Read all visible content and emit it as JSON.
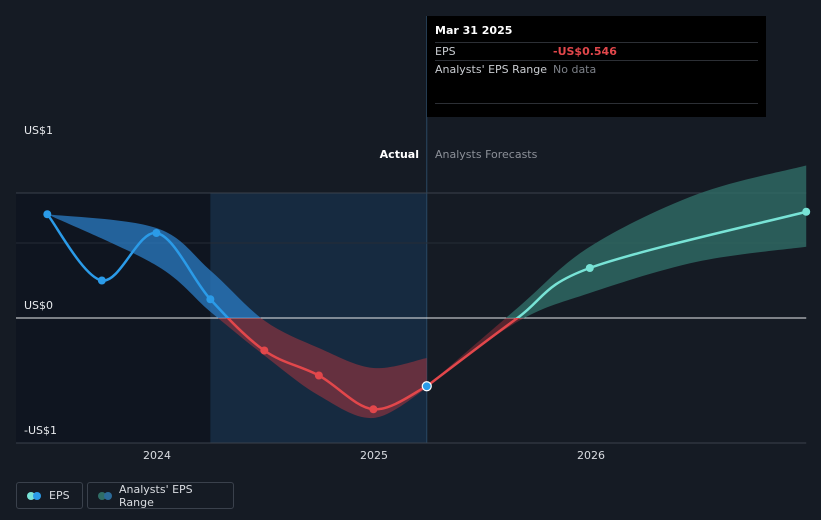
{
  "chart_data": {
    "type": "line",
    "y_axis": {
      "labels": [
        "US$1",
        "US$0",
        "-US$1"
      ],
      "ylim": [
        -1,
        1
      ]
    },
    "x_axis": {
      "tick_labels": [
        "2024",
        "2025",
        "2026"
      ],
      "range": [
        "2023-06-30",
        "2026-12-31"
      ]
    },
    "zones": {
      "actual_label": "Actual",
      "forecast_label": "Analysts Forecasts"
    },
    "series": [
      {
        "name": "EPS",
        "kind": "actual",
        "points": [
          {
            "x": "2023-06-30",
            "y": 0.83
          },
          {
            "x": "2023-09-30",
            "y": 0.3
          },
          {
            "x": "2023-12-31",
            "y": 0.68
          },
          {
            "x": "2024-03-31",
            "y": 0.15
          },
          {
            "x": "2024-06-30",
            "y": -0.26
          },
          {
            "x": "2024-09-30",
            "y": -0.46
          },
          {
            "x": "2024-12-31",
            "y": -0.73
          },
          {
            "x": "2025-03-31",
            "y": -0.546
          }
        ]
      },
      {
        "name": "EPS",
        "kind": "forecast",
        "points": [
          {
            "x": "2025-03-31",
            "y": -0.546
          },
          {
            "x": "2025-08-31",
            "y": 0.0
          },
          {
            "x": "2025-12-31",
            "y": 0.4
          },
          {
            "x": "2026-12-31",
            "y": 0.85
          }
        ]
      },
      {
        "name": "Analysts' EPS Range",
        "kind": "band",
        "upper": [
          {
            "x": "2023-06-30",
            "y": 0.83
          },
          {
            "x": "2023-12-31",
            "y": 0.72
          },
          {
            "x": "2024-03-31",
            "y": 0.38
          },
          {
            "x": "2024-06-30",
            "y": -0.02
          },
          {
            "x": "2024-09-30",
            "y": -0.24
          },
          {
            "x": "2024-12-31",
            "y": -0.4
          },
          {
            "x": "2025-03-31",
            "y": -0.32
          }
        ],
        "lower": [
          {
            "x": "2025-03-31",
            "y": -0.56
          },
          {
            "x": "2024-12-31",
            "y": -0.8
          },
          {
            "x": "2024-09-30",
            "y": -0.62
          },
          {
            "x": "2024-06-30",
            "y": -0.3
          },
          {
            "x": "2024-03-31",
            "y": 0.05
          },
          {
            "x": "2023-12-31",
            "y": 0.42
          },
          {
            "x": "2023-06-30",
            "y": 0.83
          }
        ]
      },
      {
        "name": "Analysts' EPS Range",
        "kind": "forecast-band",
        "upper": [
          {
            "x": "2025-03-31",
            "y": -0.546
          },
          {
            "x": "2025-08-31",
            "y": 0.08
          },
          {
            "x": "2025-12-31",
            "y": 0.57
          },
          {
            "x": "2026-06-30",
            "y": 0.99
          },
          {
            "x": "2026-12-31",
            "y": 1.22
          }
        ],
        "lower": [
          {
            "x": "2026-12-31",
            "y": 0.57
          },
          {
            "x": "2026-06-30",
            "y": 0.45
          },
          {
            "x": "2025-12-31",
            "y": 0.2
          },
          {
            "x": "2025-08-31",
            "y": -0.03
          },
          {
            "x": "2025-03-31",
            "y": -0.546
          }
        ]
      }
    ],
    "colors": {
      "eps_positive": "#2b9be8",
      "eps_negative": "#e2474b",
      "eps_forecast": "#78e3d6",
      "band_positive": "#2b7cc4",
      "band_negative": "#a8343e",
      "band_forecast": "#2f6d66",
      "past_shade": "#0f1520",
      "actual_shade": "#17304a"
    }
  },
  "tooltip": {
    "date": "Mar 31 2025",
    "eps_label": "EPS",
    "eps_value": "-US$0.546",
    "range_label": "Analysts' EPS Range",
    "range_value": "No data"
  },
  "legend": {
    "eps_label": "EPS",
    "range_label": "Analysts' EPS Range"
  }
}
